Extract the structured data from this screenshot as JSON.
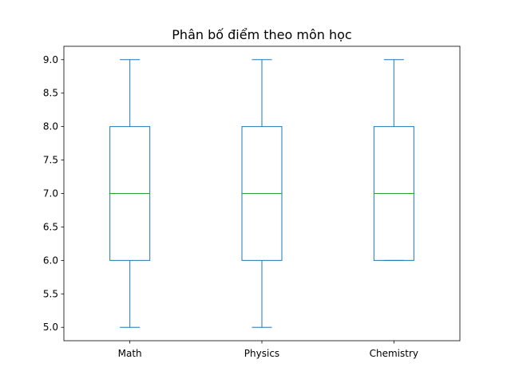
{
  "chart_data": {
    "type": "box",
    "title": "Phân bố điểm theo môn học",
    "xlabel": "",
    "ylabel": "",
    "ylim": [
      4.8,
      9.2
    ],
    "yticks": [
      "5.0",
      "5.5",
      "6.0",
      "6.5",
      "7.0",
      "7.5",
      "8.0",
      "8.5",
      "9.0"
    ],
    "grid": false,
    "categories": [
      "Math",
      "Physics",
      "Chemistry"
    ],
    "boxes": [
      {
        "name": "Math",
        "whisker_low": 5,
        "q1": 6,
        "median": 7,
        "q3": 8,
        "whisker_high": 9
      },
      {
        "name": "Physics",
        "whisker_low": 5,
        "q1": 6,
        "median": 7,
        "q3": 8,
        "whisker_high": 9
      },
      {
        "name": "Chemistry",
        "whisker_low": 6,
        "q1": 6,
        "median": 7,
        "q3": 8,
        "whisker_high": 9
      }
    ],
    "colors": {
      "box": "#1f77b4",
      "median": "#2ca02c",
      "axes": "#000000"
    }
  }
}
